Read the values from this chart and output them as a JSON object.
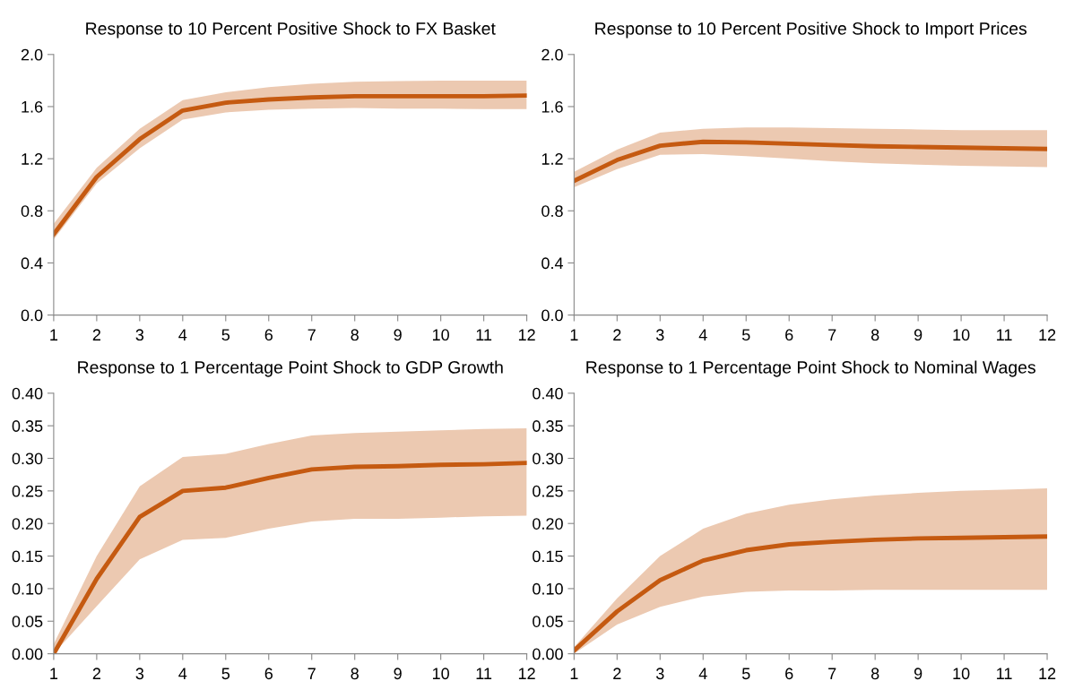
{
  "chart_data": [
    {
      "type": "line",
      "title": "Response to 10 Percent Positive Shock to FX Basket",
      "x": [
        1,
        2,
        3,
        4,
        5,
        6,
        7,
        8,
        9,
        10,
        11,
        12
      ],
      "xlim": [
        1,
        12
      ],
      "xticks": [
        1,
        2,
        3,
        4,
        5,
        6,
        7,
        8,
        9,
        10,
        11,
        12
      ],
      "ylim": [
        0,
        2.0
      ],
      "yticks": [
        {
          "value": 0,
          "label": "0.0"
        },
        {
          "value": 0.4,
          "label": "0.4"
        },
        {
          "value": 0.8,
          "label": "0.8"
        },
        {
          "value": 1.2,
          "label": "1.2"
        },
        {
          "value": 1.6,
          "label": "1.6"
        },
        {
          "value": 2.0,
          "label": "2.0"
        }
      ],
      "grid": false,
      "legend": false,
      "series": [
        {
          "color": "#c55a11",
          "values": [
            0.62,
            1.06,
            1.35,
            1.57,
            1.63,
            1.655,
            1.67,
            1.68,
            1.68,
            1.68,
            1.68,
            1.685
          ],
          "lower": [
            0.58,
            1.01,
            1.28,
            1.5,
            1.555,
            1.575,
            1.585,
            1.59,
            1.585,
            1.585,
            1.58,
            1.58
          ],
          "upper": [
            0.7,
            1.13,
            1.43,
            1.65,
            1.71,
            1.75,
            1.775,
            1.79,
            1.795,
            1.8,
            1.8,
            1.8
          ]
        }
      ]
    },
    {
      "type": "line",
      "title": "Response to 10 Percent Positive Shock to Import Prices",
      "x": [
        1,
        2,
        3,
        4,
        5,
        6,
        7,
        8,
        9,
        10,
        11,
        12
      ],
      "xlim": [
        1,
        12
      ],
      "xticks": [
        1,
        2,
        3,
        4,
        5,
        6,
        7,
        8,
        9,
        10,
        11,
        12
      ],
      "ylim": [
        0,
        2.0
      ],
      "yticks": [
        {
          "value": 0,
          "label": "0.0"
        },
        {
          "value": 0.4,
          "label": "0.4"
        },
        {
          "value": 0.8,
          "label": "0.8"
        },
        {
          "value": 1.2,
          "label": "1.2"
        },
        {
          "value": 1.6,
          "label": "1.6"
        },
        {
          "value": 2.0,
          "label": "2.0"
        }
      ],
      "grid": false,
      "legend": false,
      "series": [
        {
          "color": "#c55a11",
          "values": [
            1.03,
            1.19,
            1.3,
            1.33,
            1.325,
            1.315,
            1.305,
            1.295,
            1.29,
            1.285,
            1.28,
            1.275
          ],
          "lower": [
            0.98,
            1.12,
            1.23,
            1.235,
            1.22,
            1.2,
            1.18,
            1.165,
            1.155,
            1.145,
            1.14,
            1.135
          ],
          "upper": [
            1.1,
            1.27,
            1.4,
            1.43,
            1.44,
            1.44,
            1.435,
            1.43,
            1.425,
            1.42,
            1.42,
            1.42
          ]
        }
      ]
    },
    {
      "type": "line",
      "title": "Response to 1 Percentage Point Shock to GDP Growth",
      "x": [
        1,
        2,
        3,
        4,
        5,
        6,
        7,
        8,
        9,
        10,
        11,
        12
      ],
      "xlim": [
        1,
        12
      ],
      "xticks": [
        1,
        2,
        3,
        4,
        5,
        6,
        7,
        8,
        9,
        10,
        11,
        12
      ],
      "ylim": [
        0,
        0.4
      ],
      "yticks": [
        {
          "value": 0,
          "label": "0.00"
        },
        {
          "value": 0.05,
          "label": "0.05"
        },
        {
          "value": 0.1,
          "label": "0.10"
        },
        {
          "value": 0.15,
          "label": "0.15"
        },
        {
          "value": 0.2,
          "label": "0.20"
        },
        {
          "value": 0.25,
          "label": "0.25"
        },
        {
          "value": 0.3,
          "label": "0.30"
        },
        {
          "value": 0.35,
          "label": "0.35"
        },
        {
          "value": 0.4,
          "label": "0.40"
        }
      ],
      "grid": false,
      "legend": false,
      "series": [
        {
          "color": "#c55a11",
          "values": [
            0.0,
            0.115,
            0.21,
            0.25,
            0.255,
            0.27,
            0.283,
            0.287,
            0.288,
            0.29,
            0.291,
            0.293
          ],
          "lower": [
            0.0,
            0.073,
            0.145,
            0.175,
            0.178,
            0.192,
            0.203,
            0.207,
            0.207,
            0.209,
            0.211,
            0.212
          ],
          "upper": [
            0.015,
            0.15,
            0.257,
            0.302,
            0.307,
            0.322,
            0.335,
            0.339,
            0.341,
            0.343,
            0.345,
            0.346
          ]
        }
      ]
    },
    {
      "type": "line",
      "title": "Response to 1 Percentage Point Shock to Nominal Wages",
      "x": [
        1,
        2,
        3,
        4,
        5,
        6,
        7,
        8,
        9,
        10,
        11,
        12
      ],
      "xlim": [
        1,
        12
      ],
      "xticks": [
        1,
        2,
        3,
        4,
        5,
        6,
        7,
        8,
        9,
        10,
        11,
        12
      ],
      "ylim": [
        0,
        0.4
      ],
      "yticks": [
        {
          "value": 0,
          "label": "0.00"
        },
        {
          "value": 0.05,
          "label": "0.05"
        },
        {
          "value": 0.1,
          "label": "0.10"
        },
        {
          "value": 0.15,
          "label": "0.15"
        },
        {
          "value": 0.2,
          "label": "0.20"
        },
        {
          "value": 0.25,
          "label": "0.25"
        },
        {
          "value": 0.3,
          "label": "0.30"
        },
        {
          "value": 0.35,
          "label": "0.35"
        },
        {
          "value": 0.4,
          "label": "0.40"
        }
      ],
      "grid": false,
      "legend": false,
      "series": [
        {
          "color": "#c55a11",
          "values": [
            0.005,
            0.065,
            0.113,
            0.143,
            0.159,
            0.168,
            0.172,
            0.175,
            0.177,
            0.178,
            0.179,
            0.18
          ],
          "lower": [
            0.0,
            0.045,
            0.072,
            0.088,
            0.095,
            0.097,
            0.097,
            0.098,
            0.098,
            0.098,
            0.098,
            0.098
          ],
          "upper": [
            0.01,
            0.085,
            0.15,
            0.192,
            0.215,
            0.229,
            0.237,
            0.243,
            0.247,
            0.25,
            0.252,
            0.254
          ]
        }
      ]
    }
  ]
}
